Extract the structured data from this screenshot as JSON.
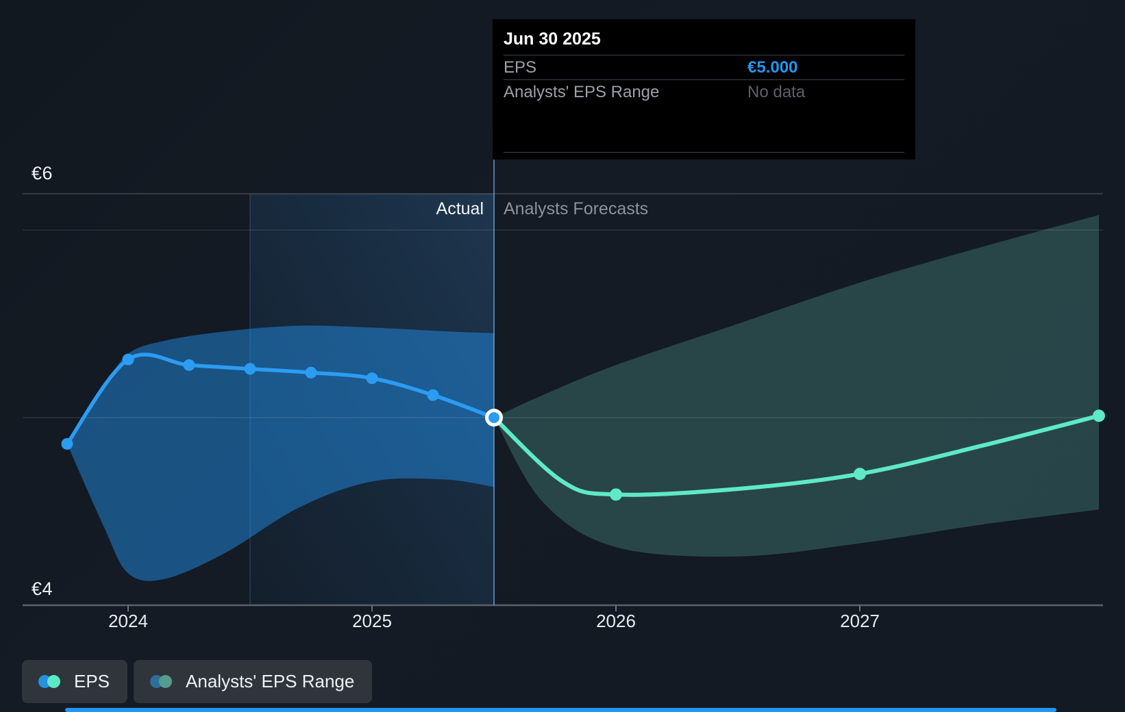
{
  "tooltip": {
    "title": "Jun 30 2025",
    "rows": [
      {
        "label": "EPS",
        "value": "€5.000",
        "value_color": "#2196f3"
      },
      {
        "label": "Analysts' EPS Range",
        "value": "No data",
        "value_color": "#5c6168"
      }
    ]
  },
  "header": {
    "actual_label": "Actual",
    "forecast_label": "Analysts Forecasts"
  },
  "y_axis": {
    "top_label": "€6",
    "bottom_label": "€4"
  },
  "x_axis": {
    "labels": [
      "2024",
      "2025",
      "2026",
      "2027"
    ]
  },
  "legend": {
    "items": [
      {
        "label": "EPS",
        "dot_colors": [
          "#2492e0",
          "#5ce9c6"
        ]
      },
      {
        "label": "Analysts' EPS Range",
        "dot_colors": [
          "#2e6e99",
          "#579b8f"
        ]
      }
    ]
  },
  "colors": {
    "accent_blue": "#2b9cf2",
    "accent_teal": "#5fe9c7",
    "tooltip_value_blue": "#2196f3",
    "background": "#141b25"
  },
  "chart_data": {
    "type": "line",
    "title": "EPS: actual vs analysts forecasts",
    "currency": "EUR",
    "ylim": [
      4.0,
      6.2
    ],
    "y_gridline_values": [
      6,
      5
    ],
    "y_axis_bottom_value": 4,
    "x_ticks": [
      2024,
      2025,
      2026,
      2027
    ],
    "divider_x": 2025.5,
    "highlight_span": [
      2024.5,
      2025.5
    ],
    "legend_position": "bottom-left",
    "series": [
      {
        "name": "EPS (actual)",
        "color": "#2b9cf2",
        "width": 5.5,
        "points": [
          {
            "x": 2023.75,
            "y": 4.86,
            "dot": true,
            "date": "Sep 30 2023"
          },
          {
            "x": 2024.0,
            "y": 5.31,
            "dot": true,
            "date": "Dec 31 2023"
          },
          {
            "x": 2024.25,
            "y": 5.28,
            "dot": true,
            "date": "Mar 31 2024"
          },
          {
            "x": 2024.5,
            "y": 5.26,
            "dot": true,
            "date": "Jun 30 2024"
          },
          {
            "x": 2024.75,
            "y": 5.24,
            "dot": true,
            "date": "Sep 30 2024"
          },
          {
            "x": 2025.0,
            "y": 5.21,
            "dot": true,
            "date": "Dec 31 2024"
          },
          {
            "x": 2025.25,
            "y": 5.12,
            "dot": true,
            "date": "Mar 31 2025"
          },
          {
            "x": 2025.5,
            "y": 5.0,
            "dot": false,
            "date": "Jun 30 2025"
          }
        ]
      },
      {
        "name": "EPS (analysts forecast)",
        "color": "#5fe9c7",
        "width": 6,
        "points": [
          {
            "x": 2025.5,
            "y": 5.0,
            "dot": false,
            "date": "Jun 30 2025"
          },
          {
            "x": 2025.78,
            "y": 4.66,
            "dot": false
          },
          {
            "x": 2026.0,
            "y": 4.59,
            "dot": true,
            "date": "Dec 31 2025"
          },
          {
            "x": 2026.5,
            "y": 4.62,
            "dot": false
          },
          {
            "x": 2027.0,
            "y": 4.7,
            "dot": true,
            "date": "Dec 31 2026"
          },
          {
            "x": 2027.5,
            "y": 4.85,
            "dot": false
          },
          {
            "x": 2027.98,
            "y": 5.01,
            "dot": true,
            "date": "Dec 31 2027"
          }
        ]
      }
    ],
    "bands": [
      {
        "name": "EPS range (actual)",
        "color": "rgba(33,144,235,0.48)",
        "points": [
          {
            "x": 2023.75,
            "lo": 4.86,
            "hi": 4.86
          },
          {
            "x": 2023.9,
            "lo": 4.42,
            "hi": 5.16
          },
          {
            "x": 2024.0,
            "lo": 4.17,
            "hi": 5.34
          },
          {
            "x": 2024.15,
            "lo": 4.14,
            "hi": 5.41
          },
          {
            "x": 2024.4,
            "lo": 4.28,
            "hi": 5.46
          },
          {
            "x": 2024.7,
            "lo": 4.52,
            "hi": 5.49
          },
          {
            "x": 2025.0,
            "lo": 4.66,
            "hi": 5.48
          },
          {
            "x": 2025.3,
            "lo": 4.67,
            "hi": 5.46
          },
          {
            "x": 2025.5,
            "lo": 4.63,
            "hi": 5.45
          }
        ]
      },
      {
        "name": "Analysts' EPS range (forecast)",
        "color": "rgba(96,189,171,0.27)",
        "points": [
          {
            "x": 2025.5,
            "lo": 5.0,
            "hi": 5.0
          },
          {
            "x": 2025.7,
            "lo": 4.55,
            "hi": 5.12
          },
          {
            "x": 2026.0,
            "lo": 4.31,
            "hi": 5.28
          },
          {
            "x": 2026.5,
            "lo": 4.26,
            "hi": 5.5
          },
          {
            "x": 2027.0,
            "lo": 4.33,
            "hi": 5.72
          },
          {
            "x": 2027.5,
            "lo": 4.43,
            "hi": 5.91
          },
          {
            "x": 2027.98,
            "lo": 4.51,
            "hi": 6.08
          }
        ]
      }
    ],
    "annotations": {
      "transition_point": {
        "x": 2025.5,
        "y": 5.0,
        "label": "Jun 30 2025",
        "value_label": "€5.000"
      }
    }
  }
}
